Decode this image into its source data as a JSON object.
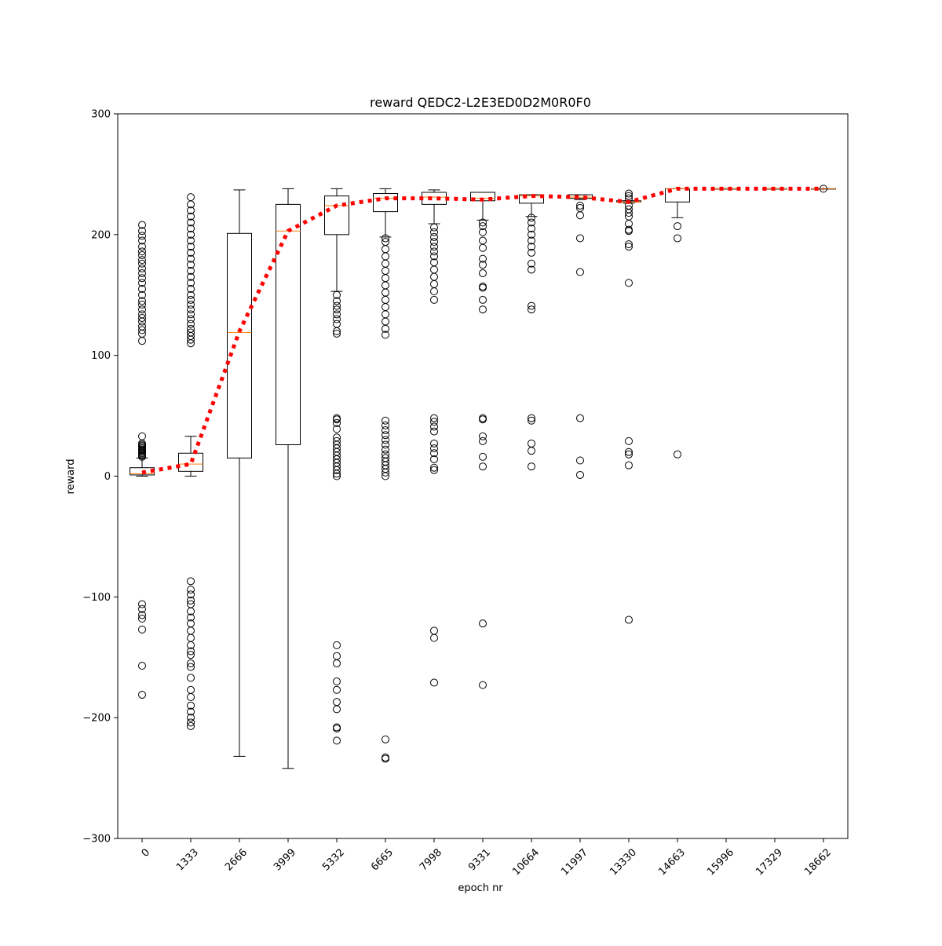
{
  "chart_data": {
    "type": "boxplot",
    "title": "reward QEDC2-L2E3ED0D2M0R0F0",
    "xlabel": "epoch nr",
    "ylabel": "reward",
    "ylim": [
      -300,
      300
    ],
    "yticks": [
      -300,
      -200,
      -100,
      0,
      100,
      200,
      300
    ],
    "categories": [
      "0",
      "1333",
      "2666",
      "3999",
      "5332",
      "6665",
      "7998",
      "9331",
      "10664",
      "11997",
      "13330",
      "14663",
      "15996",
      "17329",
      "18662"
    ],
    "boxes": [
      {
        "whislo": 0,
        "q1": 1,
        "med": 2,
        "q3": 7,
        "whishi": 15,
        "fliers": [
          16,
          17,
          18,
          19,
          20,
          21,
          22,
          23,
          24,
          25,
          26,
          27,
          33,
          112,
          118,
          121,
          124,
          128,
          131,
          134,
          138,
          142,
          145,
          150,
          155,
          160,
          164,
          168,
          172,
          176,
          179,
          183,
          186,
          190,
          195,
          199,
          203,
          208,
          -106,
          -110,
          -115,
          -118,
          -127,
          -157,
          -181
        ]
      },
      {
        "whislo": 0,
        "q1": 4,
        "med": 10,
        "q3": 19,
        "whishi": 33,
        "fliers": [
          110,
          113,
          116,
          119,
          122,
          126,
          130,
          134,
          138,
          142,
          146,
          150,
          155,
          160,
          165,
          170,
          175,
          180,
          185,
          190,
          195,
          200,
          205,
          210,
          215,
          220,
          225,
          231,
          -87,
          -94,
          -98,
          -103,
          -106,
          -112,
          -117,
          -122,
          -128,
          -134,
          -140,
          -145,
          -148,
          -155,
          -158,
          -167,
          -177,
          -183,
          -190,
          -195,
          -200,
          -204,
          -207
        ]
      },
      {
        "whislo": -232,
        "q1": 15,
        "med": 119,
        "q3": 201,
        "whishi": 237,
        "fliers": []
      },
      {
        "whislo": -242,
        "q1": 26,
        "med": 203,
        "q3": 225,
        "whishi": 238,
        "fliers": []
      },
      {
        "whislo": 153,
        "q1": 200,
        "med": 224,
        "q3": 232,
        "whishi": 238,
        "fliers": [
          0,
          2,
          5,
          8,
          11,
          14,
          17,
          20,
          23,
          26,
          29,
          32,
          39,
          44,
          47,
          48,
          118,
          120,
          126,
          130,
          134,
          138,
          141,
          145,
          150,
          -140,
          -149,
          -155,
          -170,
          -177,
          -187,
          -193,
          -208,
          -209,
          -219
        ]
      },
      {
        "whislo": 198,
        "q1": 219,
        "med": 230,
        "q3": 234,
        "whishi": 238,
        "fliers": [
          0,
          3,
          6,
          9,
          12,
          15,
          18,
          22,
          26,
          30,
          34,
          38,
          42,
          46,
          117,
          122,
          128,
          134,
          140,
          146,
          152,
          158,
          164,
          170,
          176,
          182,
          188,
          194,
          197,
          -218,
          -233,
          -234
        ]
      },
      {
        "whislo": 209,
        "q1": 225,
        "med": 231,
        "q3": 235,
        "whishi": 237,
        "fliers": [
          5,
          7,
          14,
          19,
          23,
          27,
          37,
          41,
          45,
          48,
          146,
          153,
          159,
          165,
          171,
          177,
          182,
          186,
          190,
          194,
          198,
          202,
          206,
          -128,
          -134,
          -171
        ]
      },
      {
        "whislo": 212,
        "q1": 228,
        "med": 230,
        "q3": 235,
        "whishi": 235,
        "fliers": [
          8,
          16,
          29,
          33,
          47,
          48,
          138,
          146,
          156,
          157,
          168,
          175,
          180,
          189,
          195,
          202,
          207,
          210,
          -122,
          -173
        ]
      },
      {
        "whislo": 215,
        "q1": 226,
        "med": 232,
        "q3": 233,
        "whishi": 233,
        "fliers": [
          8,
          21,
          27,
          46,
          48,
          138,
          141,
          171,
          176,
          185,
          190,
          195,
          200,
          205,
          210,
          214
        ]
      },
      {
        "whislo": 229,
        "q1": 230,
        "med": 231,
        "q3": 233,
        "whishi": 233,
        "fliers": [
          1,
          13,
          48,
          169,
          197,
          216,
          222,
          224
        ]
      },
      {
        "whislo": 226,
        "q1": 227,
        "med": 227,
        "q3": 228,
        "whishi": 228,
        "fliers": [
          9,
          18,
          20,
          29,
          160,
          190,
          192,
          203,
          204,
          209,
          215,
          218,
          221,
          224,
          230,
          232,
          234,
          -119
        ]
      },
      {
        "whislo": 214,
        "q1": 227,
        "med": 238,
        "q3": 238,
        "whishi": 238,
        "fliers": [
          18,
          197,
          207
        ]
      },
      {
        "whislo": 238,
        "q1": 238,
        "med": 238,
        "q3": 238,
        "whishi": 238,
        "fliers": []
      },
      {
        "whislo": 238,
        "q1": 238,
        "med": 238,
        "q3": 238,
        "whishi": 238,
        "fliers": []
      },
      {
        "whislo": 238,
        "q1": 238,
        "med": 238,
        "q3": 238,
        "whishi": 238,
        "fliers": [
          238
        ]
      }
    ],
    "mean_line": {
      "values": [
        3,
        10,
        120,
        203,
        224,
        230,
        230,
        229,
        232,
        231,
        227,
        238,
        238,
        238,
        238
      ],
      "color": "#ff0000",
      "style": "dotted"
    },
    "colors": {
      "box": "#000000",
      "median": "#ff7f0e",
      "mean_line": "#ff0000"
    },
    "grid": false,
    "legend": "none"
  }
}
